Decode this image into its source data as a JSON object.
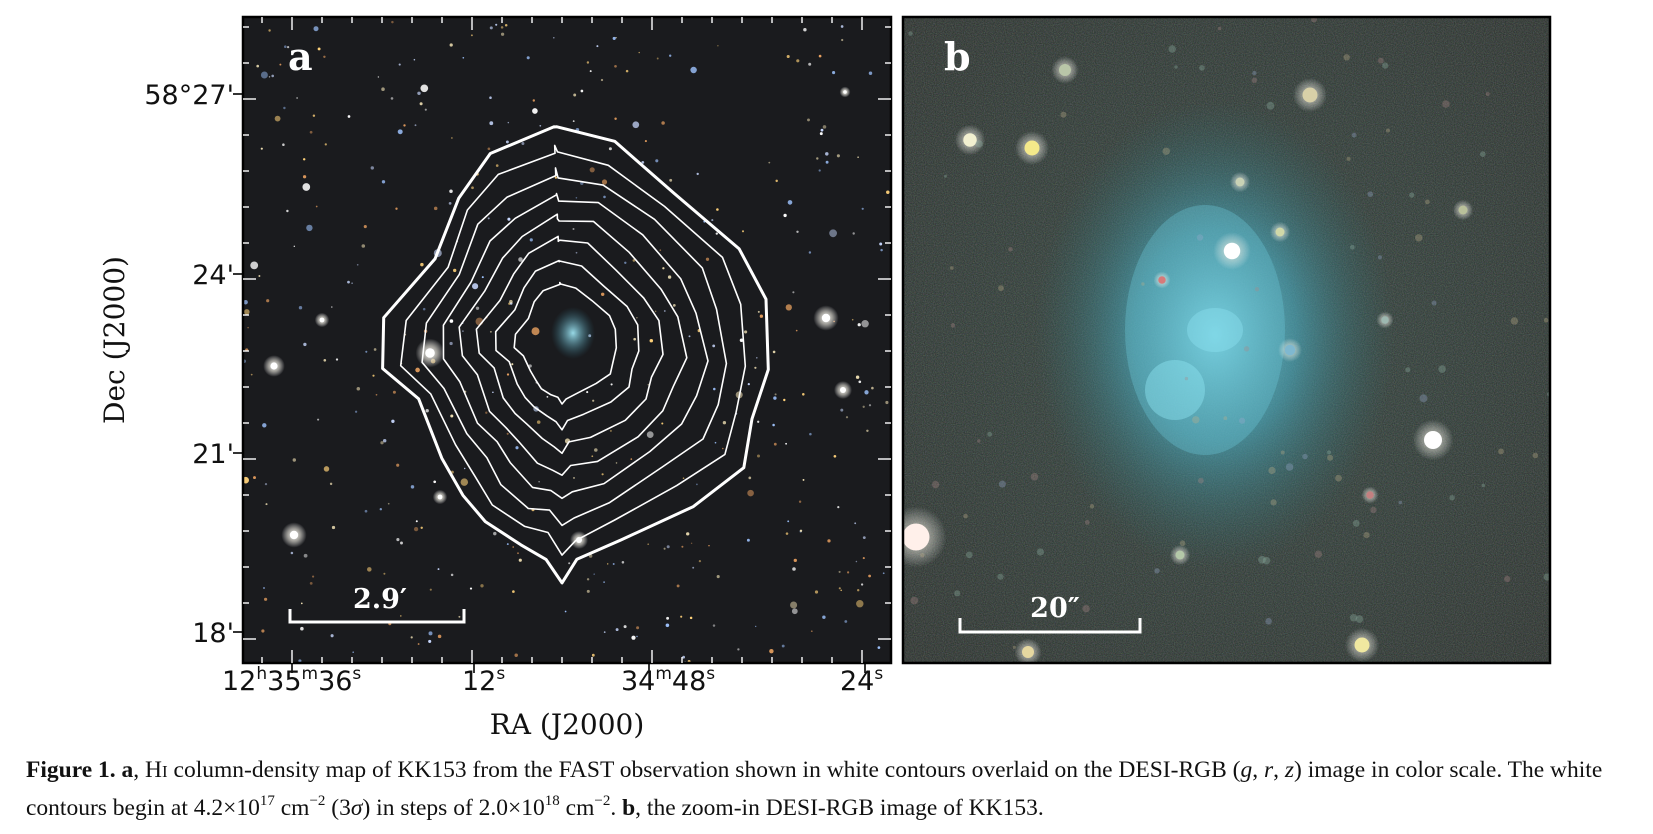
{
  "panel_a": {
    "label": "a",
    "y_axis": {
      "label": "Dec (J2000)",
      "ticks": [
        "58°27'",
        "24'",
        "21'",
        "18'"
      ]
    },
    "x_axis": {
      "label": "RA (J2000)",
      "ticks": [
        {
          "hh": "12",
          "h": "h",
          "mm": "35",
          "m": "m",
          "ss": "36",
          "s": "s"
        },
        {
          "ss": "12",
          "s": "s"
        },
        {
          "mm": "34",
          "m": "m",
          "ss": "48",
          "s": "s"
        },
        {
          "ss": "24",
          "s": "s"
        }
      ]
    },
    "scale_bar_label": "2.9′",
    "contour_count": 8
  },
  "panel_b": {
    "label": "b",
    "scale_bar_label": "20″"
  },
  "caption": {
    "fig_label": "Figure 1.",
    "a_label": "a",
    "a_text_1": ", H",
    "hi_numeral": "I",
    "a_text_2": " column-density map of KK153 from the FAST observation shown in white contours overlaid on the DESI-RGB (",
    "g": "g",
    "comma1": ", ",
    "r": "r",
    "comma2": ", ",
    "z": "z",
    "a_text_3": ") image in color scale. The white contours begin at 4.2×10",
    "exp1": "17",
    "unit1": " cm",
    "exp_neg1": "−2",
    "a_text_4": " (3",
    "sigma": "σ",
    "a_text_5": ") in steps of 2.0×10",
    "exp2": "18",
    "unit2": " cm",
    "exp_neg2": "−2",
    "a_text_6": ". ",
    "b_label": "b",
    "b_text": ", the zoom-in DESI-RGB image of KK153."
  },
  "colors": {
    "sky_a": "#1a1b1e",
    "galaxy_b": "#5fb6c8",
    "contour": "#ffffff"
  }
}
